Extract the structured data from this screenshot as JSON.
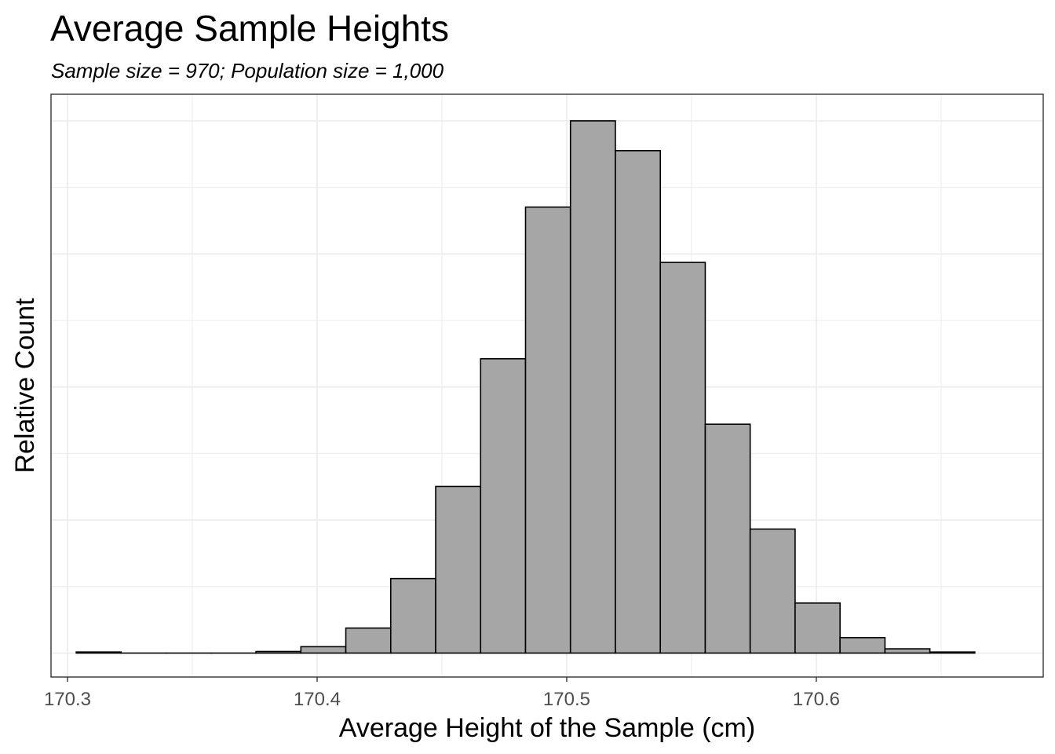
{
  "chart_data": {
    "type": "bar",
    "title": "Average Sample Heights",
    "subtitle": "Sample size = 970; Population size = 1,000",
    "xlabel": "Average Height of the Sample (cm)",
    "ylabel": "Relative Count",
    "x_ticks": [
      "170.3",
      "170.4",
      "170.5",
      "170.6"
    ],
    "x_tick_values": [
      170.3,
      170.4,
      170.5,
      170.6
    ],
    "xlim": [
      170.2934,
      170.6909
    ],
    "bin_width": 0.018,
    "bins": [
      {
        "x0": 170.3035,
        "x1": 170.3215,
        "count": 0.002
      },
      {
        "x0": 170.3215,
        "x1": 170.3395,
        "count": 0.0
      },
      {
        "x0": 170.3395,
        "x1": 170.3575,
        "count": 0.0
      },
      {
        "x0": 170.3575,
        "x1": 170.3755,
        "count": 0.0
      },
      {
        "x0": 170.3755,
        "x1": 170.3935,
        "count": 0.003
      },
      {
        "x0": 170.3935,
        "x1": 170.4115,
        "count": 0.012
      },
      {
        "x0": 170.4115,
        "x1": 170.4295,
        "count": 0.047
      },
      {
        "x0": 170.4295,
        "x1": 170.4475,
        "count": 0.14
      },
      {
        "x0": 170.4475,
        "x1": 170.4655,
        "count": 0.313
      },
      {
        "x0": 170.4655,
        "x1": 170.4835,
        "count": 0.553
      },
      {
        "x0": 170.4835,
        "x1": 170.5015,
        "count": 0.838
      },
      {
        "x0": 170.5015,
        "x1": 170.5195,
        "count": 1.0
      },
      {
        "x0": 170.5195,
        "x1": 170.5375,
        "count": 0.944
      },
      {
        "x0": 170.5375,
        "x1": 170.5555,
        "count": 0.734
      },
      {
        "x0": 170.5555,
        "x1": 170.5735,
        "count": 0.43
      },
      {
        "x0": 170.5735,
        "x1": 170.5915,
        "count": 0.233
      },
      {
        "x0": 170.5915,
        "x1": 170.6095,
        "count": 0.094
      },
      {
        "x0": 170.6095,
        "x1": 170.6275,
        "count": 0.029
      },
      {
        "x0": 170.6275,
        "x1": 170.6455,
        "count": 0.008
      },
      {
        "x0": 170.6455,
        "x1": 170.6635,
        "count": 0.002
      }
    ],
    "ylim": [
      -0.045,
      1.05
    ],
    "y_ticks_shown": false,
    "grid": true,
    "colors": {
      "bar_fill": "#a6a6a6",
      "bar_stroke": "#000000",
      "grid": "#ebebeb",
      "panel_border": "#333333",
      "tick_text": "#4d4d4d"
    }
  }
}
